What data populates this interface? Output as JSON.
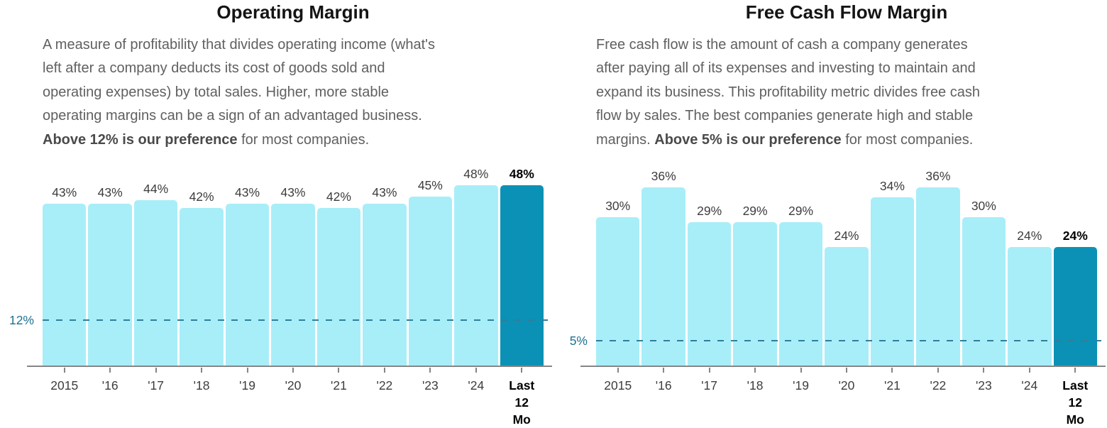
{
  "panels": [
    {
      "description_lines": [
        [
          {
            "text": "A measure of profitability that divides operating income (what's",
            "bold": false
          }
        ],
        [
          {
            "text": "left after a company deducts its cost of goods sold and",
            "bold": false
          }
        ],
        [
          {
            "text": "operating expenses) by total sales. Higher, more stable",
            "bold": false
          }
        ],
        [
          {
            "text": "operating margins can be a sign of an advantaged business.",
            "bold": false
          }
        ],
        [
          {
            "text": "Above 12% is our preference",
            "bold": true
          },
          {
            "text": " for most companies.",
            "bold": false
          }
        ]
      ]
    },
    {
      "description_lines": [
        [
          {
            "text": "Free cash flow is the amount of cash a company generates",
            "bold": false
          }
        ],
        [
          {
            "text": "after paying all of its expenses and investing to maintain and",
            "bold": false
          }
        ],
        [
          {
            "text": "expand its business. This profitability metric divides free cash",
            "bold": false
          }
        ],
        [
          {
            "text": "flow by sales. The best companies generate high and stable",
            "bold": false
          }
        ],
        [
          {
            "text": "margins. ",
            "bold": false
          },
          {
            "text": "Above 5% is our preference",
            "bold": true
          },
          {
            "text": " for most companies.",
            "bold": false
          }
        ]
      ]
    }
  ],
  "chart_data": [
    {
      "type": "bar",
      "title": "Operating Margin",
      "categories": [
        "2015",
        "'16",
        "'17",
        "'18",
        "'19",
        "'20",
        "'21",
        "'22",
        "'23",
        "'24",
        "Last 12 Mo"
      ],
      "values": [
        43,
        43,
        44,
        42,
        43,
        43,
        42,
        43,
        45,
        48,
        48
      ],
      "value_labels": [
        "43%",
        "43%",
        "44%",
        "42%",
        "43%",
        "43%",
        "42%",
        "43%",
        "45%",
        "48%",
        "48%"
      ],
      "highlight_index": 10,
      "threshold_value": 12,
      "threshold_label": "12%",
      "ylim": [
        0,
        54
      ],
      "xlabel": "",
      "ylabel": "",
      "grid": false,
      "legend": "none",
      "bar_color": "#a8eef8",
      "highlight_color": "#0b91b5"
    },
    {
      "type": "bar",
      "title": "Free Cash Flow Margin",
      "categories": [
        "2015",
        "'16",
        "'17",
        "'18",
        "'19",
        "'20",
        "'21",
        "'22",
        "'23",
        "'24",
        "Last 12 Mo"
      ],
      "values": [
        30,
        36,
        29,
        29,
        29,
        24,
        34,
        36,
        30,
        24,
        24
      ],
      "value_labels": [
        "30%",
        "36%",
        "29%",
        "29%",
        "29%",
        "24%",
        "34%",
        "36%",
        "30%",
        "24%",
        "24%"
      ],
      "highlight_index": 10,
      "threshold_value": 5,
      "threshold_label": "5%",
      "ylim": [
        0,
        41
      ],
      "xlabel": "",
      "ylabel": "",
      "grid": false,
      "legend": "none",
      "bar_color": "#a8eef8",
      "highlight_color": "#0b91b5"
    }
  ]
}
